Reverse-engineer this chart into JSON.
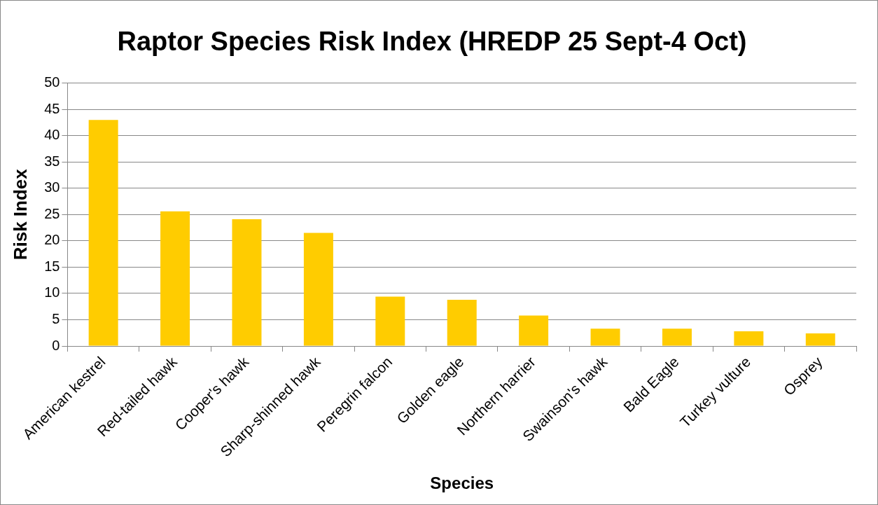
{
  "chart_data": {
    "type": "bar",
    "title": "Raptor Species Risk Index (HREDP 25 Sept-4 Oct)",
    "xlabel": "Species",
    "ylabel": "Risk Index",
    "categories": [
      "American kestrel",
      "Red-tailed hawk",
      "Cooper's hawk",
      "Sharp-shinned hawk",
      "Peregrin falcon",
      "Golden eagle",
      "Northern harrier",
      "Swainson's hawk",
      "Bald Eagle",
      "Turkey vulture",
      "Osprey"
    ],
    "values": [
      43,
      25.6,
      24.1,
      21.5,
      9.4,
      8.8,
      5.8,
      3.3,
      3.3,
      2.8,
      2.4
    ],
    "color": "#ffcc00",
    "ylim": [
      0,
      50
    ],
    "yticks": [
      0,
      5,
      10,
      15,
      20,
      25,
      30,
      35,
      40,
      45,
      50
    ],
    "grid": "y",
    "legend": false
  }
}
